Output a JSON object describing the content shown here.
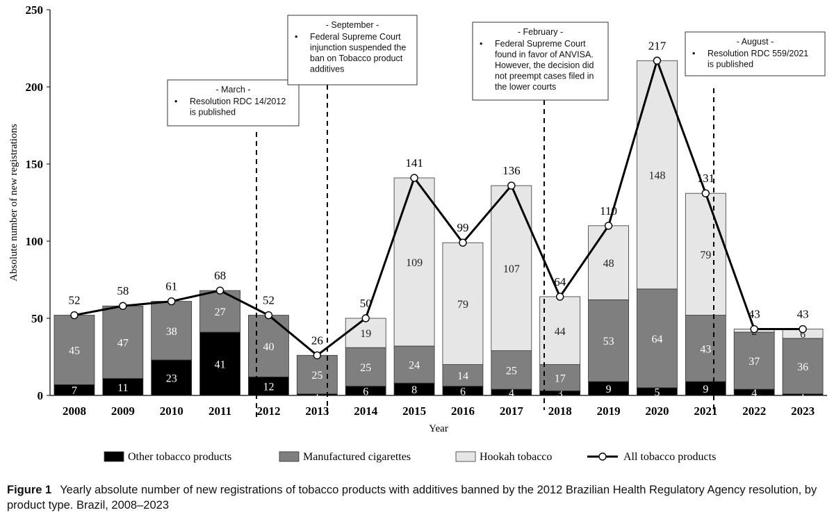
{
  "chart_data": {
    "type": "bar",
    "stacked": true,
    "categories": [
      "2008",
      "2009",
      "2010",
      "2011",
      "2012",
      "2013",
      "2014",
      "2015",
      "2016",
      "2017",
      "2018",
      "2019",
      "2020",
      "2021",
      "2022",
      "2023"
    ],
    "series": [
      {
        "name": "Other tobacco products",
        "color": "#000000",
        "values": [
          7,
          11,
          23,
          41,
          12,
          1,
          6,
          8,
          6,
          4,
          3,
          9,
          5,
          9,
          4,
          1
        ]
      },
      {
        "name": "Manufactured cigarettes",
        "color": "#7f7f7f",
        "values": [
          45,
          47,
          38,
          27,
          40,
          25,
          25,
          24,
          14,
          25,
          17,
          53,
          64,
          43,
          37,
          36
        ]
      },
      {
        "name": "Hookah tobacco",
        "color": "#e6e6e6",
        "values": [
          0,
          0,
          0,
          0,
          0,
          0,
          19,
          109,
          79,
          107,
          44,
          48,
          148,
          79,
          2,
          6
        ]
      }
    ],
    "line": {
      "name": "All tobacco products",
      "values": [
        52,
        58,
        61,
        68,
        52,
        26,
        50,
        141,
        99,
        136,
        64,
        110,
        217,
        131,
        43,
        43
      ]
    },
    "xlabel": "Year",
    "ylabel": "Absolute number of new registrations",
    "ylim": [
      0,
      250
    ],
    "yticks": [
      0,
      50,
      100,
      150,
      200,
      250
    ],
    "legend_position": "bottom",
    "annotations": [
      {
        "after_year": "2011",
        "header": "- March -",
        "lines": [
          "Resolution RDC 14/2012",
          "is published"
        ]
      },
      {
        "after_year": "2013",
        "header": "- September -",
        "lines": [
          "Federal Supreme Court",
          "injunction suspended the",
          "ban on Tobacco product",
          "additives"
        ]
      },
      {
        "after_year": "2017",
        "header": "- February -",
        "lines": [
          "Federal Supreme Court",
          "found in favor of ANVISA.",
          "However, the decision did",
          "not preempt cases filed in",
          "the lower courts"
        ]
      },
      {
        "after_year": "2021",
        "header": "- August -",
        "lines": [
          "Resolution RDC 559/2021",
          "is published"
        ]
      }
    ]
  },
  "caption": {
    "label": "Figure 1",
    "text": "Yearly absolute number of new registrations of tobacco products with additives banned by the 2012 Brazilian Health Regulatory Agency resolution, by product type. Brazil, 2008–2023"
  }
}
